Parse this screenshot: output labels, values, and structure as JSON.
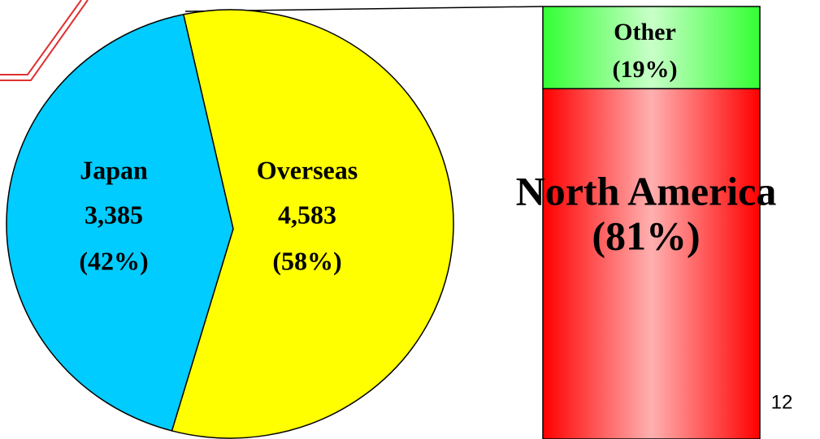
{
  "chart_data": [
    {
      "type": "pie",
      "categories": [
        "Japan",
        "Overseas"
      ],
      "values": [
        3385,
        4583
      ],
      "value_labels": [
        "3,385",
        "4,583"
      ],
      "percents": [
        42,
        58
      ],
      "percent_labels": [
        "(42%)",
        "(58%)"
      ],
      "colors": [
        "#00ccff",
        "#ffff00"
      ]
    },
    {
      "type": "stacked-bar",
      "ylim": [
        0,
        100
      ],
      "series": [
        {
          "name": "North America",
          "values": [
            81
          ],
          "value_labels": [
            "(81%)"
          ],
          "color": "#ff0000"
        },
        {
          "name": "Other",
          "values": [
            19
          ],
          "value_labels": [
            "(19%)"
          ],
          "color": "#33ff33"
        }
      ]
    }
  ],
  "page_number": "12"
}
